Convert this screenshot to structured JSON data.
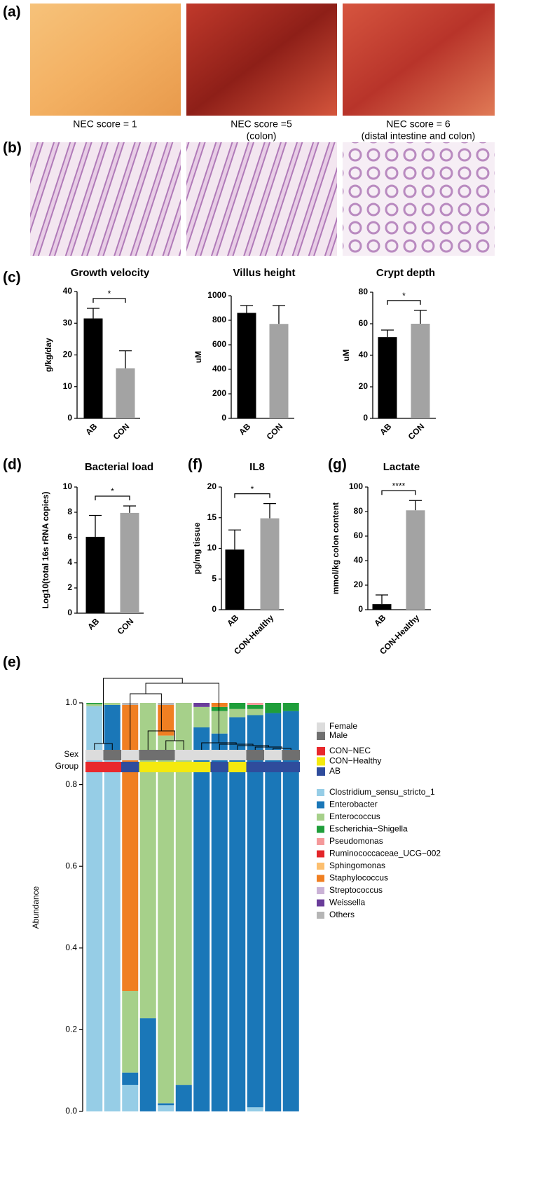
{
  "panel_labels": {
    "a": "(a)",
    "b": "(b)",
    "c": "(c)",
    "d": "(d)",
    "f": "(f)",
    "g": "(g)",
    "e": "(e)"
  },
  "photo_captions": [
    [
      "NEC score = 1"
    ],
    [
      "NEC score =5",
      "(colon)"
    ],
    [
      "NEC score = 6",
      "(distal intestine and colon)"
    ]
  ],
  "chart_data": [
    {
      "type": "bar",
      "title": "Growth velocity",
      "y_label": "g/kg/day",
      "categories": [
        "AB",
        "CON"
      ],
      "values": [
        31.5,
        15.8
      ],
      "errors": [
        3.2,
        5.5
      ],
      "colors": [
        "#000000",
        "#a3a3a3"
      ],
      "ylim": [
        0,
        40
      ],
      "yticks": [
        0,
        10,
        20,
        30,
        40
      ],
      "significance": "*"
    },
    {
      "type": "bar",
      "title": "Villus height",
      "y_label": "uM",
      "categories": [
        "AB",
        "CON"
      ],
      "values": [
        860,
        770
      ],
      "errors": [
        60,
        150
      ],
      "colors": [
        "#000000",
        "#a3a3a3"
      ],
      "ylim": [
        0,
        1000
      ],
      "yticks": [
        0,
        200,
        400,
        600,
        800,
        1000
      ]
    },
    {
      "type": "bar",
      "title": "Crypt depth",
      "y_label": "uM",
      "categories": [
        "AB",
        "CON"
      ],
      "values": [
        51.5,
        60
      ],
      "errors": [
        4.5,
        8.5
      ],
      "colors": [
        "#000000",
        "#a3a3a3"
      ],
      "ylim": [
        0,
        80
      ],
      "yticks": [
        0,
        20,
        40,
        60,
        80
      ],
      "significance": "*"
    },
    {
      "type": "bar",
      "title": "Bacterial load",
      "y_label": "Log10(total 16s rRNA copies)",
      "categories": [
        "AB",
        "CON"
      ],
      "values": [
        6.05,
        7.95
      ],
      "errors": [
        1.7,
        0.55
      ],
      "colors": [
        "#000000",
        "#a3a3a3"
      ],
      "ylim": [
        0,
        10
      ],
      "yticks": [
        0,
        2,
        4,
        6,
        8,
        10
      ],
      "significance": "*"
    },
    {
      "type": "bar",
      "title": "IL8",
      "y_label": "pg/mg tissue",
      "categories": [
        "AB",
        "CON-Healthy"
      ],
      "values": [
        9.8,
        14.9
      ],
      "errors": [
        3.2,
        2.4
      ],
      "colors": [
        "#000000",
        "#a3a3a3"
      ],
      "ylim": [
        0,
        20
      ],
      "yticks": [
        0,
        5,
        10,
        15,
        20
      ],
      "significance": "*"
    },
    {
      "type": "bar",
      "title": "Lactate",
      "y_label": "mmol/kg colon content",
      "categories": [
        "AB",
        "CON-Healthy"
      ],
      "values": [
        4.5,
        81
      ],
      "errors": [
        7.5,
        8
      ],
      "colors": [
        "#000000",
        "#a3a3a3"
      ],
      "ylim": [
        0,
        100
      ],
      "yticks": [
        0,
        20,
        40,
        60,
        80,
        100
      ],
      "significance": "****"
    },
    {
      "type": "stacked_bar",
      "y_label": "Abundance",
      "ylim": [
        0,
        1
      ],
      "yticks": [
        {
          "value": 0,
          "label": "0.0"
        },
        {
          "value": 0.2,
          "label": "0.2"
        },
        {
          "value": 0.4,
          "label": "0.4"
        },
        {
          "value": 0.6,
          "label": "0.6"
        },
        {
          "value": 0.8,
          "label": "0.8"
        },
        {
          "value": 1,
          "label": "1.0"
        }
      ],
      "sex_label": "Sex",
      "group_label": "Group",
      "sex_levels": [
        {
          "name": "Female",
          "color": "#dcdcdc"
        },
        {
          "name": "Male",
          "color": "#6f6f6f"
        }
      ],
      "group_levels": [
        {
          "name": "CON−NEC",
          "color": "#e8282c"
        },
        {
          "name": "CON−Healthy",
          "color": "#f4e90e"
        },
        {
          "name": "AB",
          "color": "#2f4c9c"
        }
      ],
      "sex": [
        "Female",
        "Male",
        "Female",
        "Male",
        "Male",
        "Female",
        "Female",
        "Female",
        "Female",
        "Male",
        "Female",
        "Male"
      ],
      "group": [
        "CON−NEC",
        "CON−NEC",
        "AB",
        "CON−Healthy",
        "CON−Healthy",
        "CON−Healthy",
        "CON−Healthy",
        "AB",
        "CON−Healthy",
        "AB",
        "AB",
        "AB"
      ],
      "series": [
        {
          "name": "Clostridium_sensu_stricto_1",
          "color": "#96cde6",
          "values": [
            0.992,
            0.88,
            0.065,
            0,
            0.015,
            0,
            0,
            0,
            0,
            0.01,
            0,
            0
          ]
        },
        {
          "name": "Enterobacter",
          "color": "#1a77b8",
          "values": [
            0,
            0.115,
            0.03,
            0.228,
            0.005,
            0.065,
            0.94,
            0.925,
            0.965,
            0.96,
            0.975,
            0.98
          ]
        },
        {
          "name": "Enterococcus",
          "color": "#a6d08a",
          "values": [
            0.005,
            0.005,
            0.2,
            0.772,
            0.9,
            0.935,
            0.05,
            0.055,
            0.02,
            0.015,
            0,
            0
          ]
        },
        {
          "name": "Escherichia−Shigella",
          "color": "#1f9e3a",
          "values": [
            0.003,
            0,
            0,
            0,
            0,
            0,
            0,
            0.01,
            0.015,
            0.01,
            0.025,
            0.02
          ]
        },
        {
          "name": "Pseudomonas",
          "color": "#f4999a",
          "values": [
            0,
            0,
            0,
            0,
            0,
            0,
            0,
            0,
            0,
            0.005,
            0,
            0
          ]
        },
        {
          "name": "Ruminococcaceae_UCG−002",
          "color": "#e3262a",
          "values": [
            0,
            0,
            0,
            0,
            0,
            0,
            0,
            0,
            0,
            0,
            0,
            0
          ]
        },
        {
          "name": "Sphingomonas",
          "color": "#fcbf6f",
          "values": [
            0,
            0,
            0,
            0,
            0,
            0,
            0,
            0,
            0,
            0,
            0,
            0
          ]
        },
        {
          "name": "Staphylococcus",
          "color": "#f07f22",
          "values": [
            0,
            0,
            0.7,
            0,
            0.075,
            0,
            0,
            0.01,
            0,
            0,
            0,
            0
          ]
        },
        {
          "name": "Streptococcus",
          "color": "#cab2d6",
          "values": [
            0,
            0,
            0,
            0,
            0,
            0,
            0,
            0,
            0,
            0,
            0,
            0
          ]
        },
        {
          "name": "Weissella",
          "color": "#6a3d9a",
          "values": [
            0,
            0,
            0,
            0,
            0,
            0,
            0.01,
            0,
            0,
            0,
            0,
            0
          ]
        },
        {
          "name": "Others",
          "color": "#b5b5b5",
          "values": [
            0,
            0,
            0.005,
            0,
            0.005,
            0,
            0,
            0,
            0,
            0,
            0,
            0
          ]
        }
      ]
    }
  ]
}
